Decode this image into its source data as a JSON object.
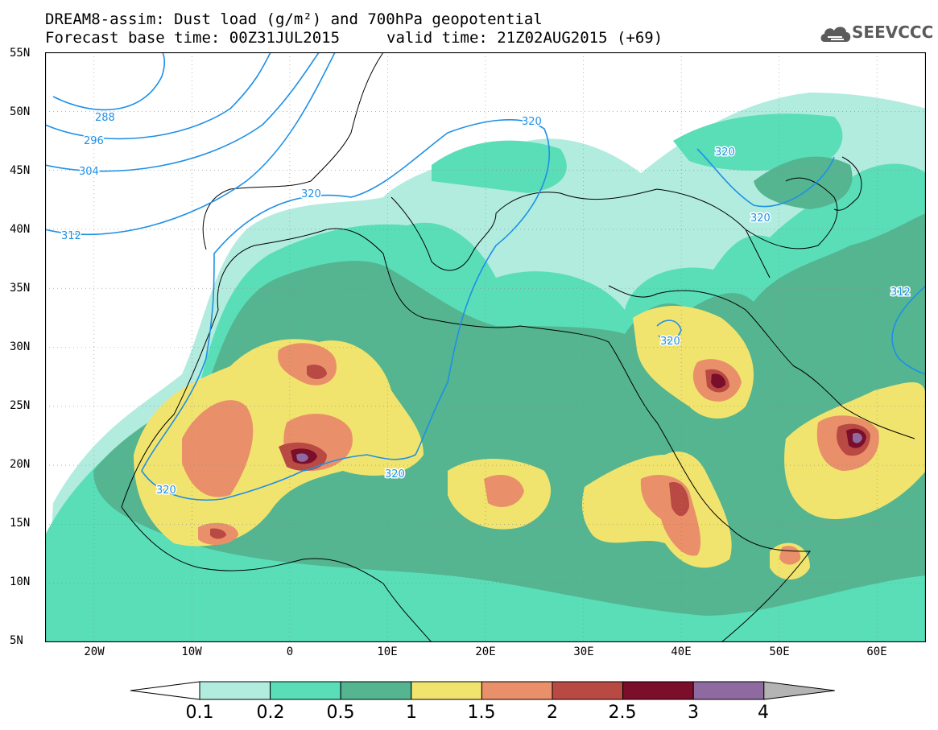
{
  "title": {
    "line1": "DREAM8-assim: Dust load (g/m²) and 700hPa geopotential",
    "line2": "Forecast base time: 00Z31JUL2015",
    "valid": "valid time: 21Z02AUG2015 (+69)"
  },
  "logo": {
    "text": "SEEVCCC",
    "icon": "cloud-logo-icon"
  },
  "map": {
    "lon_range": [
      -25,
      65
    ],
    "lat_range": [
      5,
      55
    ],
    "lat_labels": [
      "55N",
      "50N",
      "45N",
      "40N",
      "35N",
      "30N",
      "25N",
      "20N",
      "15N",
      "10N",
      "5N"
    ],
    "lon_labels": [
      "20W",
      "10W",
      "0",
      "10E",
      "20E",
      "30E",
      "40E",
      "50E",
      "60E"
    ],
    "contour_labels": [
      "288",
      "296",
      "304",
      "312",
      "320",
      "320",
      "320",
      "320",
      "320",
      "320",
      "312"
    ],
    "contour_color": "#1e90e6"
  },
  "colorbar": {
    "levels": [
      "0.1",
      "0.2",
      "0.5",
      "1",
      "1.5",
      "2",
      "2.5",
      "3",
      "4"
    ],
    "colors": [
      "#b2ecdf",
      "#5adeb8",
      "#54b590",
      "#f1e46e",
      "#e9906b",
      "#b84a43",
      "#7a0e2b",
      "#8f6aa0"
    ],
    "under_color": "#ffffff",
    "over_color": "#b4b4b4"
  }
}
